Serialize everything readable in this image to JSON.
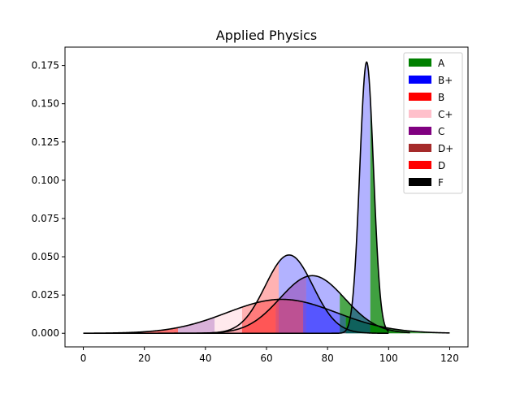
{
  "chart_data": {
    "type": "area",
    "title": "Applied Physics",
    "xlabel": "",
    "ylabel": "",
    "xlim": [
      -6,
      126
    ],
    "ylim": [
      -0.0089,
      0.187
    ],
    "x_ticks": [
      0,
      20,
      40,
      60,
      80,
      100,
      120
    ],
    "y_ticks": [
      0.0,
      0.025,
      0.05,
      0.075,
      0.1,
      0.125,
      0.15,
      0.175
    ],
    "x_tick_labels": [
      "0",
      "20",
      "40",
      "60",
      "80",
      "100",
      "120"
    ],
    "y_tick_labels": [
      "0.000",
      "0.025",
      "0.050",
      "0.075",
      "0.100",
      "0.125",
      "0.150",
      "0.175"
    ],
    "grid": false,
    "legend_position": "top-right",
    "legend": [
      {
        "label": "A",
        "color": "#008000"
      },
      {
        "label": "B+",
        "color": "#0000ff"
      },
      {
        "label": "B",
        "color": "#ff0000"
      },
      {
        "label": "C+",
        "color": "#ffc0cb"
      },
      {
        "label": "C",
        "color": "#800080"
      },
      {
        "label": "D+",
        "color": "#a52a2a"
      },
      {
        "label": "D",
        "color": "#ff0000"
      },
      {
        "label": "F",
        "color": "#000000"
      }
    ],
    "curves": [
      {
        "mean": 67.4,
        "sd": 7.8,
        "x_range": [
          0,
          100
        ],
        "bands": [
          {
            "from": 0,
            "to": 45,
            "color": "#800080",
            "alpha": 0.3
          },
          {
            "from": 45,
            "to": 52,
            "color": "#ffc0cb",
            "alpha": 0.5
          },
          {
            "from": 52,
            "to": 64,
            "color": "#ff0000",
            "alpha": 0.3
          },
          {
            "from": 64,
            "to": 100,
            "color": "#0000ff",
            "alpha": 0.3
          }
        ]
      },
      {
        "mean": 75.0,
        "sd": 10.6,
        "x_range": [
          0,
          107
        ],
        "bands": [
          {
            "from": 0,
            "to": 63,
            "color": "#ff0000",
            "alpha": 0.3
          },
          {
            "from": 63,
            "to": 73,
            "color": "#800080",
            "alpha": 0.35
          },
          {
            "from": 73,
            "to": 84,
            "color": "#0000ff",
            "alpha": 0.3
          },
          {
            "from": 84,
            "to": 107,
            "color": "#008000",
            "alpha": 0.7
          }
        ]
      },
      {
        "mean": 65.0,
        "sd": 18.0,
        "x_range": [
          0,
          120
        ],
        "bands": [
          {
            "from": 0,
            "to": 31,
            "color": "#ff0000",
            "alpha": 0.55
          },
          {
            "from": 31,
            "to": 43,
            "color": "#800080",
            "alpha": 0.3
          },
          {
            "from": 43,
            "to": 52,
            "color": "#ffc0cb",
            "alpha": 0.35
          },
          {
            "from": 52,
            "to": 63,
            "color": "#ff0000",
            "alpha": 0.3
          },
          {
            "from": 63,
            "to": 72,
            "color": "#ff0000",
            "alpha": 0.3
          },
          {
            "from": 72,
            "to": 86,
            "color": "#0000ff",
            "alpha": 0.3
          },
          {
            "from": 86,
            "to": 120,
            "color": "#008000",
            "alpha": 0.7
          }
        ]
      },
      {
        "mean": 92.8,
        "sd": 2.25,
        "x_range": [
          0,
          100
        ],
        "bands": [
          {
            "from": 0,
            "to": 86,
            "color": "#ff0000",
            "alpha": 0.2
          },
          {
            "from": 86,
            "to": 94,
            "color": "#0000ff",
            "alpha": 0.3
          },
          {
            "from": 94,
            "to": 100,
            "color": "#008000",
            "alpha": 0.75
          }
        ]
      }
    ]
  }
}
